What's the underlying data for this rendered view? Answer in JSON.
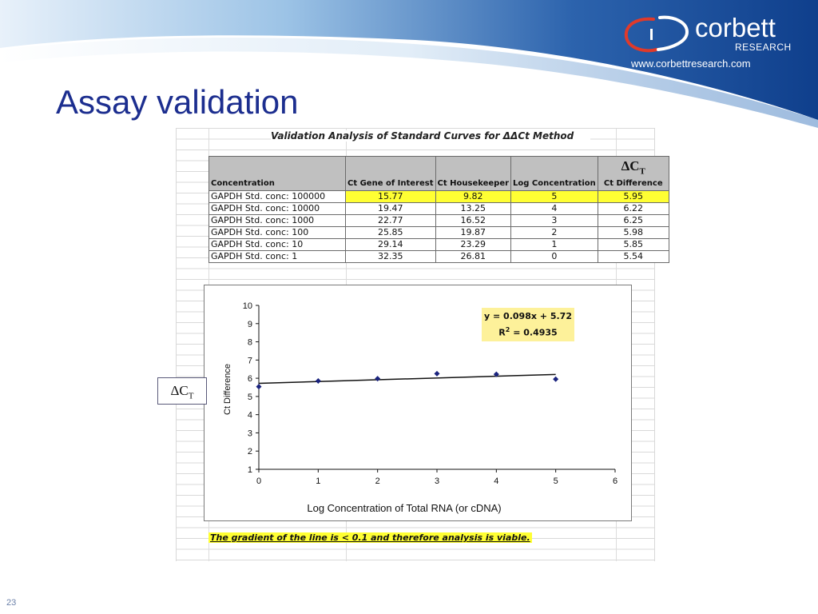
{
  "header": {
    "logo_word": "corbett",
    "logo_sub": "RESEARCH",
    "website": "www.corbettresearch.com",
    "colors": {
      "navy": "#0f3f8c",
      "light_blue": "#9cc3e6",
      "title": "#1c2e8f"
    }
  },
  "slide": {
    "title": "Assay validation",
    "number": "23"
  },
  "sheet": {
    "title": "Validation Analysis of Standard Curves for ΔΔCt Method",
    "columns": {
      "concentration": "Concentration",
      "ct_gene": "Ct Gene of Interest",
      "ct_house": "Ct Housekeeper",
      "log_conc": "Log Concentration",
      "dct_symbol": "ΔC",
      "dct_sub": "T",
      "ct_diff": "Ct Difference"
    },
    "rows": [
      {
        "concentration": "GAPDH Std. conc: 100000",
        "ct_gene": "15.77",
        "ct_house": "9.82",
        "log_conc": "5",
        "ct_diff": "5.95"
      },
      {
        "concentration": "GAPDH Std. conc: 10000",
        "ct_gene": "19.47",
        "ct_house": "13.25",
        "log_conc": "4",
        "ct_diff": "6.22"
      },
      {
        "concentration": "GAPDH Std. conc: 1000",
        "ct_gene": "22.77",
        "ct_house": "16.52",
        "log_conc": "3",
        "ct_diff": "6.25"
      },
      {
        "concentration": "GAPDH Std. conc: 100",
        "ct_gene": "25.85",
        "ct_house": "19.87",
        "log_conc": "2",
        "ct_diff": "5.98"
      },
      {
        "concentration": "GAPDH Std. conc: 10",
        "ct_gene": "29.14",
        "ct_house": "23.29",
        "log_conc": "1",
        "ct_diff": "5.85"
      },
      {
        "concentration": "GAPDH Std. conc: 1",
        "ct_gene": "32.35",
        "ct_house": "26.81",
        "log_conc": "0",
        "ct_diff": "5.54"
      }
    ],
    "conclusion": "The gradient of the line is < 0.1 and therefore analysis is viable.",
    "highlight_color": "#ffff33"
  },
  "side_label": {
    "symbol": "ΔC",
    "sub": "T"
  },
  "chart_data": {
    "type": "scatter",
    "xlabel": "Log Concentration of Total RNA (or cDNA)",
    "ylabel": "Ct Difference",
    "xlim": [
      0,
      6
    ],
    "ylim": [
      1,
      10
    ],
    "xticks": [
      0,
      1,
      2,
      3,
      4,
      5,
      6
    ],
    "yticks": [
      1,
      2,
      3,
      4,
      5,
      6,
      7,
      8,
      9,
      10
    ],
    "points": [
      {
        "x": 0,
        "y": 5.54
      },
      {
        "x": 1,
        "y": 5.85
      },
      {
        "x": 2,
        "y": 5.98
      },
      {
        "x": 3,
        "y": 6.25
      },
      {
        "x": 4,
        "y": 6.22
      },
      {
        "x": 5,
        "y": 5.95
      }
    ],
    "trendline": {
      "slope": 0.098,
      "intercept": 5.72,
      "x_range": [
        0,
        5
      ]
    },
    "equation": "y = 0.098x + 5.72",
    "r2_label": "R",
    "r2_sup": "2",
    "r2_value": " = 0.4935",
    "grid": false,
    "marker_color": "#1a237e"
  }
}
